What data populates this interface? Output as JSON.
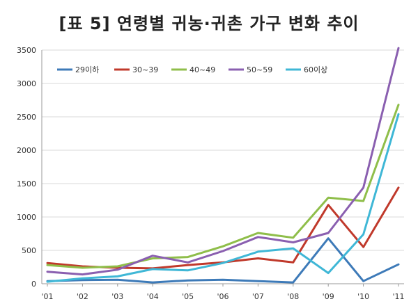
{
  "title": "[표 5] 연령별 귀농·귀촌 가구 변화 추이",
  "chart_data": {
    "type": "line",
    "title": "[표 5] 연령별 귀농·귀촌 가구 변화 추이",
    "xlabel": "",
    "ylabel": "",
    "categories": [
      "'01",
      "'02",
      "'03",
      "'04",
      "'05",
      "'06",
      "'07",
      "'08",
      "'09",
      "'10",
      "'11"
    ],
    "ylim": [
      0,
      3500
    ],
    "yticks": [
      0,
      500,
      1000,
      1500,
      2000,
      2500,
      3000,
      3500
    ],
    "grid": "horizontal",
    "legend_position": "top-left",
    "series": [
      {
        "name": "29이하",
        "color": "#3d7ab8",
        "values": [
          40,
          55,
          60,
          20,
          50,
          60,
          40,
          20,
          680,
          40,
          290
        ]
      },
      {
        "name": "30~39",
        "color": "#c0392b",
        "values": [
          310,
          260,
          240,
          230,
          280,
          320,
          380,
          320,
          1180,
          550,
          1440
        ]
      },
      {
        "name": "40~49",
        "color": "#8fbe4a",
        "values": [
          280,
          240,
          260,
          380,
          400,
          560,
          760,
          690,
          1290,
          1240,
          2680
        ]
      },
      {
        "name": "50~59",
        "color": "#8a5fb0",
        "values": [
          180,
          140,
          210,
          420,
          320,
          490,
          700,
          620,
          760,
          1440,
          3530
        ]
      },
      {
        "name": "60이상",
        "color": "#3fb7d6",
        "values": [
          30,
          80,
          110,
          220,
          200,
          310,
          480,
          530,
          160,
          740,
          2540
        ]
      }
    ]
  }
}
